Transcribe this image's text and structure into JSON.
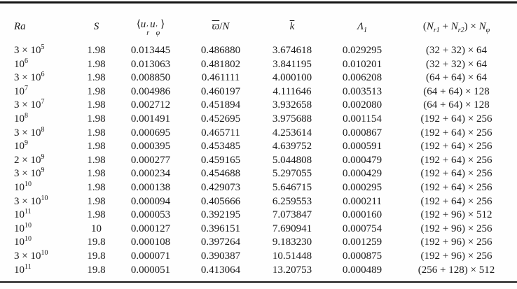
{
  "table": {
    "headers": {
      "ra": "Ra",
      "s": "S",
      "flux": {
        "langle": "⟨",
        "u": "u",
        "prime": "′",
        "sub_r": "r",
        "sub_phi": "φ",
        "rangle": "⟩"
      },
      "omega": {
        "omega": "ϖ",
        "slash": "/",
        "n": "N"
      },
      "k": "k",
      "lambda": {
        "lambda": "Λ",
        "sub": "1"
      },
      "resolution": {
        "open": "(",
        "n1": "N",
        "sub1": "r1",
        "plus": " + ",
        "n2": "N",
        "sub2": "r2",
        "close": ") × ",
        "n3": "N",
        "sub3": "φ"
      }
    },
    "rows": [
      {
        "ra_base": "3 × 10",
        "ra_exp": "5",
        "s": "1.98",
        "flux": "0.013445",
        "omega_n": "0.486880",
        "k": "3.674618",
        "lambda1": "0.029295",
        "resolution": "(32 + 32) × 64"
      },
      {
        "ra_base": "10",
        "ra_exp": "6",
        "s": "1.98",
        "flux": "0.013063",
        "omega_n": "0.481802",
        "k": "3.841195",
        "lambda1": "0.010201",
        "resolution": "(32 + 32) × 64"
      },
      {
        "ra_base": "3 × 10",
        "ra_exp": "6",
        "s": "1.98",
        "flux": "0.008850",
        "omega_n": "0.461111",
        "k": "4.000100",
        "lambda1": "0.006208",
        "resolution": "(64 + 64) × 64"
      },
      {
        "ra_base": "10",
        "ra_exp": "7",
        "s": "1.98",
        "flux": "0.004986",
        "omega_n": "0.460197",
        "k": "4.111646",
        "lambda1": "0.003513",
        "resolution": "(64 + 64) × 128"
      },
      {
        "ra_base": "3 × 10",
        "ra_exp": "7",
        "s": "1.98",
        "flux": "0.002712",
        "omega_n": "0.451894",
        "k": "3.932658",
        "lambda1": "0.002080",
        "resolution": "(64 + 64) × 128"
      },
      {
        "ra_base": "10",
        "ra_exp": "8",
        "s": "1.98",
        "flux": "0.001491",
        "omega_n": "0.452695",
        "k": "3.975688",
        "lambda1": "0.001154",
        "resolution": "(192 + 64) × 256"
      },
      {
        "ra_base": "3 × 10",
        "ra_exp": "8",
        "s": "1.98",
        "flux": "0.000695",
        "omega_n": "0.465711",
        "k": "4.253614",
        "lambda1": "0.000867",
        "resolution": "(192 + 64) × 256"
      },
      {
        "ra_base": "10",
        "ra_exp": "9",
        "s": "1.98",
        "flux": "0.000395",
        "omega_n": "0.453485",
        "k": "4.639752",
        "lambda1": "0.000591",
        "resolution": "(192 + 64) × 256"
      },
      {
        "ra_base": "2 × 10",
        "ra_exp": "9",
        "s": "1.98",
        "flux": "0.000277",
        "omega_n": "0.459165",
        "k": "5.044808",
        "lambda1": "0.000479",
        "resolution": "(192 + 64) × 256"
      },
      {
        "ra_base": "3 × 10",
        "ra_exp": "9",
        "s": "1.98",
        "flux": "0.000234",
        "omega_n": "0.454688",
        "k": "5.297055",
        "lambda1": "0.000429",
        "resolution": "(192 + 64) × 256"
      },
      {
        "ra_base": "10",
        "ra_exp": "10",
        "s": "1.98",
        "flux": "0.000138",
        "omega_n": "0.429073",
        "k": "5.646715",
        "lambda1": "0.000295",
        "resolution": "(192 + 64) × 256"
      },
      {
        "ra_base": "3 × 10",
        "ra_exp": "10",
        "s": "1.98",
        "flux": "0.000094",
        "omega_n": "0.405666",
        "k": "6.259553",
        "lambda1": "0.000211",
        "resolution": "(192 + 64) × 256"
      },
      {
        "ra_base": "10",
        "ra_exp": "11",
        "s": "1.98",
        "flux": "0.000053",
        "omega_n": "0.392195",
        "k": "7.073847",
        "lambda1": "0.000160",
        "resolution": "(192 + 96) × 512"
      },
      {
        "ra_base": "10",
        "ra_exp": "10",
        "s": "10",
        "flux": "0.000127",
        "omega_n": "0.396151",
        "k": "7.690941",
        "lambda1": "0.000754",
        "resolution": "(192 + 96) × 256"
      },
      {
        "ra_base": "10",
        "ra_exp": "10",
        "s": "19.8",
        "flux": "0.000108",
        "omega_n": "0.397264",
        "k": "9.183230",
        "lambda1": "0.001259",
        "resolution": "(192 + 96) × 256"
      },
      {
        "ra_base": "3 × 10",
        "ra_exp": "10",
        "s": "19.8",
        "flux": "0.000071",
        "omega_n": "0.390387",
        "k": "10.51448",
        "lambda1": "0.000875",
        "resolution": "(192 + 96) × 256"
      },
      {
        "ra_base": "10",
        "ra_exp": "11",
        "s": "19.8",
        "flux": "0.000051",
        "omega_n": "0.413064",
        "k": "13.20753",
        "lambda1": "0.000489",
        "resolution": "(256 + 128) × 512"
      }
    ]
  }
}
